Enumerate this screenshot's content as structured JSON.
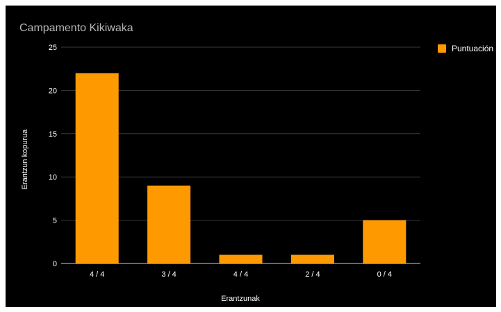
{
  "chart_data": {
    "type": "bar",
    "title": "Campamento Kikiwaka",
    "xlabel": "Erantzunak",
    "ylabel": "Erantzun kopurua",
    "categories": [
      "4 / 4",
      "3 / 4",
      "4 / 4",
      "2 / 4",
      "0 / 4"
    ],
    "series": [
      {
        "name": "Puntuación",
        "values": [
          22,
          9,
          1,
          1,
          5
        ]
      }
    ],
    "ylim": [
      0,
      25
    ],
    "yticks": [
      0,
      5,
      10,
      15,
      20,
      25
    ],
    "grid": true,
    "legend_position": "top-right",
    "colors": {
      "background": "#000000",
      "bar": "#ff9900",
      "title": "#b7b7b7",
      "text": "#ffffff",
      "grid": "#3a3a3a"
    }
  }
}
